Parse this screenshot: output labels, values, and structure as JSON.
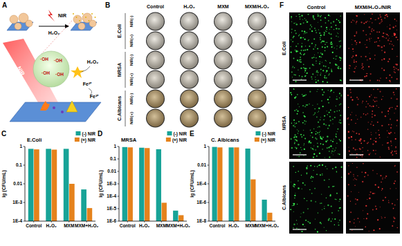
{
  "chart_data": [
    {
      "type": "bar",
      "title": "E.Coli",
      "ylabel": "lg (CFU/mL)",
      "log": "y",
      "grid": false,
      "legend": "top-right",
      "categories": [
        "Control",
        "H₂O₂",
        "MXM",
        "MXM+H₂O₂"
      ],
      "series": [
        {
          "name": "(-) NIR",
          "color": "#17a397",
          "values": [
            0.75,
            0.75,
            0.75,
            0.005
          ]
        },
        {
          "name": "(+) NIR",
          "color": "#e5821c",
          "values": [
            0.7,
            0.68,
            0.01,
            0.0005
          ]
        }
      ],
      "ylim": [
        0.0001,
        1
      ],
      "yticks": [
        {
          "value": 0.0001,
          "label": "1E-4"
        },
        {
          "value": 0.001,
          "label": "1E-3"
        },
        0.01,
        0.1,
        1
      ]
    },
    {
      "type": "bar",
      "title": "MRSA",
      "ylabel": "lg (CFU/mL)",
      "log": "y",
      "grid": false,
      "legend": "top-right",
      "categories": [
        "Control",
        "H₂O₂",
        "MXM",
        "MXM+H₂O₂"
      ],
      "series": [
        {
          "name": "(-) NIR",
          "color": "#17a397",
          "values": [
            0.9,
            0.8,
            0.6,
            7e-06
          ]
        },
        {
          "name": "(+) NIR",
          "color": "#e5821c",
          "values": [
            0.85,
            0.75,
            3e-05,
            3e-06
          ]
        }
      ],
      "ylim": [
        1e-06,
        1
      ],
      "yticks": [
        {
          "value": 1e-06,
          "label": "1E-6"
        },
        {
          "value": 1e-05,
          "label": "1E-5"
        },
        {
          "value": 0.0001,
          "label": "1E-4"
        },
        {
          "value": 0.001,
          "label": "1E-3"
        },
        0.01,
        0.1,
        1
      ]
    },
    {
      "type": "bar",
      "title": "C. Albicans",
      "ylabel": "lg (CFU/mL)",
      "log": "y",
      "grid": false,
      "legend": "top-right",
      "categories": [
        "Control",
        "H₂O₂",
        "MXM",
        "MXM+H₂O₂"
      ],
      "series": [
        {
          "name": "(-) NIR",
          "color": "#17a397",
          "values": [
            0.9,
            0.8,
            0.6,
            2e-06
          ]
        },
        {
          "name": "(+) NIR",
          "color": "#e5821c",
          "values": [
            0.8,
            0.8,
            0.0003,
            8e-08
          ]
        }
      ],
      "ylim": [
        1e-08,
        1
      ],
      "yticks": [
        {
          "value": 1e-08,
          "label": "1E-8"
        },
        {
          "value": 1e-06,
          "label": "1E-6"
        },
        {
          "value": 0.0001,
          "label": "1E-4"
        },
        0.01,
        1
      ]
    }
  ],
  "panel_labels": [
    "A",
    "B",
    "C",
    "D",
    "E",
    "F"
  ],
  "schematic": {
    "nir_small": "NIR",
    "h2o2_small": "H₂O₂",
    "nir_beam": "NIR",
    "radical": "·OH",
    "h2o2": "H₂O₂",
    "fe2": "Fe²⁺",
    "fe3": "Fe³⁺"
  },
  "plates": {
    "columns": [
      "Control",
      "H₂O₂",
      "MXM",
      "MXM/H₂O₂"
    ],
    "organisms": [
      "E.Coli",
      "MRSA",
      "C.Albicans"
    ],
    "conditions": [
      "NIR(-)",
      "NIR(+)"
    ]
  },
  "fluorescence": {
    "columns": [
      "Control",
      "MXM/H₂O₂/NIR"
    ],
    "organisms": [
      "E.Coli",
      "MRSA",
      "C.Albicans"
    ]
  }
}
